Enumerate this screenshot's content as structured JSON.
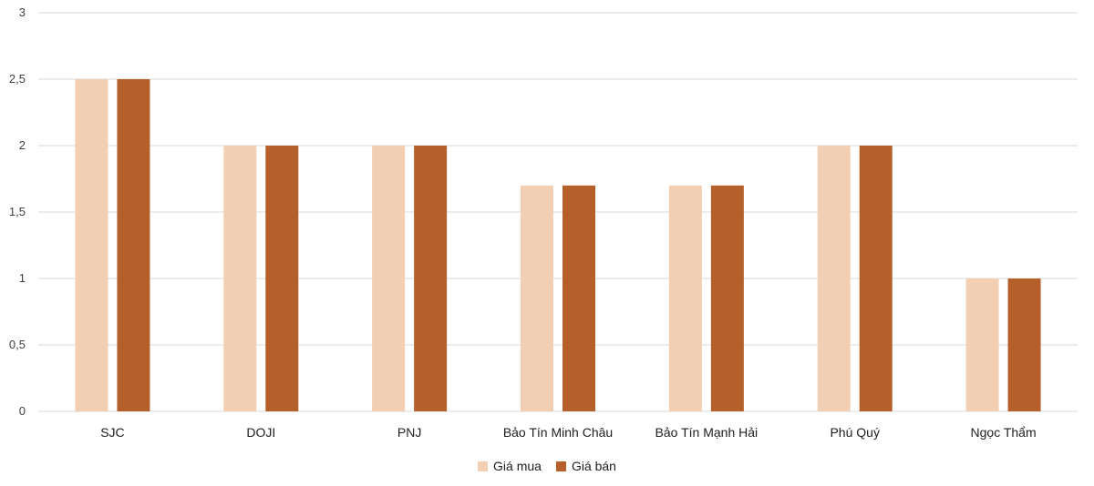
{
  "chart_data": {
    "type": "bar",
    "categories": [
      "SJC",
      "DOJI",
      "PNJ",
      "Bảo Tín Minh Châu",
      "Bảo Tín Mạnh Hải",
      "Phú Quý",
      "Ngọc Thẩm"
    ],
    "series": [
      {
        "name": "Giá mua",
        "values": [
          2.5,
          2,
          2,
          1.7,
          1.7,
          2,
          1
        ],
        "color": "#F2CEB2"
      },
      {
        "name": "Giá bán",
        "values": [
          2.5,
          2,
          2,
          1.7,
          1.7,
          2,
          1
        ],
        "color": "#B5602A"
      }
    ],
    "ylim": [
      0,
      3
    ],
    "yticks": [
      "0",
      "0,5",
      "1",
      "1,5",
      "2",
      "2,5",
      "3"
    ],
    "ytick_values": [
      0,
      0.5,
      1,
      1.5,
      2,
      2.5,
      3
    ],
    "grid": true,
    "gridline_color": "#D9D9D9",
    "legend_position": "bottom"
  }
}
